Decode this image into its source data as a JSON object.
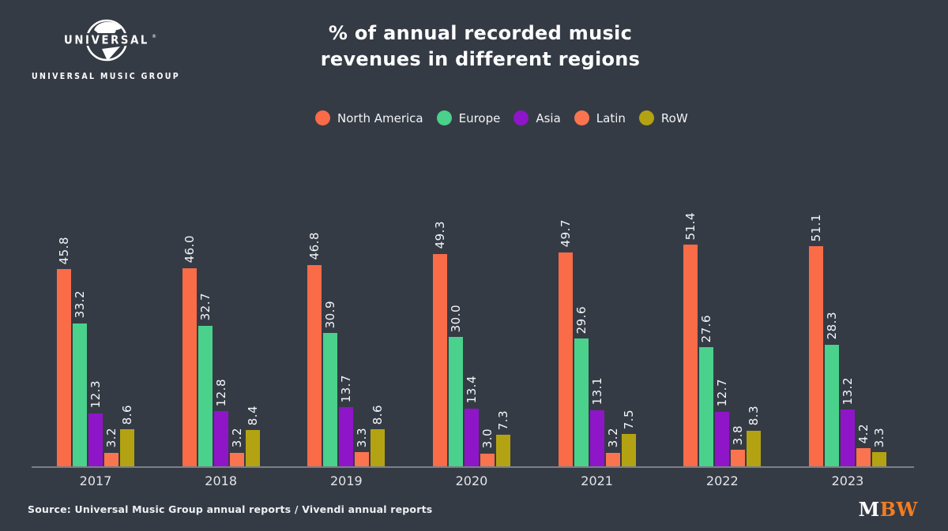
{
  "header": {
    "brand_logo": {
      "globe_text": "UNIVERSAL",
      "registered_mark": "®",
      "sub_text": "UNIVERSAL MUSIC GROUP"
    },
    "title_line1": "% of annual recorded music",
    "title_line2": "revenues in different regions"
  },
  "legend": {
    "items": [
      {
        "label": "North America",
        "color": "#fa6b48"
      },
      {
        "label": "Europe",
        "color": "#4ad18c"
      },
      {
        "label": "Asia",
        "color": "#8f15c8"
      },
      {
        "label": "Latin",
        "color": "#fb7450"
      },
      {
        "label": "RoW",
        "color": "#b3a312"
      }
    ]
  },
  "chart_data": {
    "type": "bar",
    "title": "% of annual recorded music revenues in different regions",
    "categories": [
      "2017",
      "2018",
      "2019",
      "2020",
      "2021",
      "2022",
      "2023"
    ],
    "series": [
      {
        "name": "North America",
        "color": "#fa6b48",
        "values": [
          45.8,
          46.0,
          46.8,
          49.3,
          49.7,
          51.4,
          51.1
        ]
      },
      {
        "name": "Europe",
        "color": "#4ad18c",
        "values": [
          33.2,
          32.7,
          30.9,
          30.0,
          29.6,
          27.6,
          28.3
        ]
      },
      {
        "name": "Asia",
        "color": "#8f15c8",
        "values": [
          12.3,
          12.8,
          13.7,
          13.4,
          13.1,
          12.7,
          13.2
        ]
      },
      {
        "name": "Latin",
        "color": "#fb7450",
        "values": [
          3.2,
          3.2,
          3.3,
          3.0,
          3.2,
          3.8,
          4.2
        ]
      },
      {
        "name": "RoW",
        "color": "#b3a312",
        "values": [
          8.6,
          8.4,
          8.6,
          7.3,
          7.5,
          8.3,
          3.3
        ]
      }
    ],
    "value_labels": true,
    "value_label_format": "one_decimal",
    "xlabel": "",
    "ylabel": "",
    "ylim": [
      0,
      55
    ],
    "grid": false,
    "legend_position": "top",
    "background_color": "#353b45",
    "axis_line_color": "#7b7f87"
  },
  "footer": {
    "source": "Source: Universal Music Group annual reports / Vivendi annual reports",
    "mbw_logo": {
      "m": "M",
      "bw": "BW",
      "bw_color": "#f47c20"
    }
  }
}
